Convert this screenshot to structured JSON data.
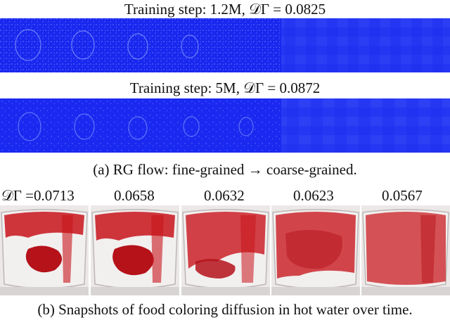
{
  "panel_a": {
    "title_1": "Training step: 1.2M, 𝒟Γ = 0.0825",
    "title_2": "Training step: 5M, 𝒟Γ = 0.0872",
    "caption": "(a)  RG flow: fine-grained → coarse-grained."
  },
  "panel_b": {
    "metrics": [
      "𝒟Γ =0.0713",
      "0.0658",
      "0.0632",
      "0.0623",
      "0.0567"
    ],
    "caption": "(b)  Snapshots of food coloring diffusion in hot water over time."
  },
  "colors": {
    "strip_base": "#1d2cf3",
    "strip_light": "#3f55f6",
    "dye": "#c8141b",
    "glass": "#ece8e8"
  }
}
